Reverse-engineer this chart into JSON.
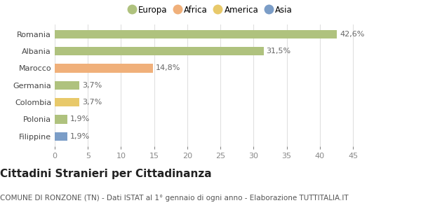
{
  "categories": [
    "Filippine",
    "Polonia",
    "Colombia",
    "Germania",
    "Marocco",
    "Albania",
    "Romania"
  ],
  "values": [
    1.9,
    1.9,
    3.7,
    3.7,
    14.8,
    31.5,
    42.6
  ],
  "labels": [
    "1,9%",
    "1,9%",
    "3,7%",
    "3,7%",
    "14,8%",
    "31,5%",
    "42,6%"
  ],
  "bar_colors": [
    "#7b9dc7",
    "#afc27e",
    "#e8c96a",
    "#afc27e",
    "#f0b07a",
    "#afc27e",
    "#afc27e"
  ],
  "legend": [
    {
      "label": "Europa",
      "color": "#afc27e"
    },
    {
      "label": "Africa",
      "color": "#f0b07a"
    },
    {
      "label": "America",
      "color": "#e8c96a"
    },
    {
      "label": "Asia",
      "color": "#7b9dc7"
    }
  ],
  "xlim": [
    0,
    47
  ],
  "xticks": [
    0,
    5,
    10,
    15,
    20,
    25,
    30,
    35,
    40,
    45
  ],
  "title": "Cittadini Stranieri per Cittadinanza",
  "subtitle": "COMUNE DI RONZONE (TN) - Dati ISTAT al 1° gennaio di ogni anno - Elaborazione TUTTITALIA.IT",
  "background_color": "#ffffff",
  "grid_color": "#e0e0e0",
  "bar_height": 0.5,
  "label_fontsize": 8,
  "title_fontsize": 11,
  "subtitle_fontsize": 7.5,
  "tick_fontsize": 8,
  "ytick_fontsize": 8
}
